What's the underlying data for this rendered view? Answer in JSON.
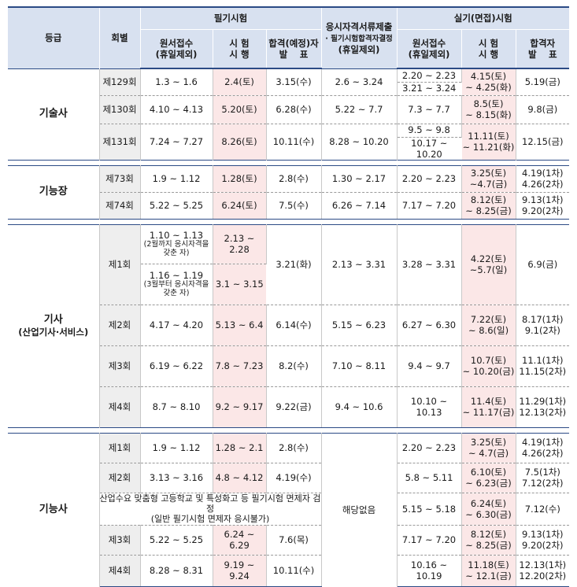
{
  "header": {
    "grade": "등급",
    "round": "회별",
    "written": "필기시험",
    "written_apply": "원서접수\n(휴일제외)",
    "written_exam": "시 험\n시 행",
    "written_result": "합격(예정)자\n발　 표",
    "docs": "응시자격서류제출",
    "docs_sub": "· 필기시험합격자결정",
    "docs_sub2": "(휴일제외)",
    "practical": "실기(면접)시험",
    "prac_apply": "원서접수\n(휴일제외)",
    "prac_exam": "시 험\n시 행",
    "prac_result": "합격자\n발　 표"
  },
  "gisulsa": {
    "grade": "기술사",
    "rows": [
      {
        "round": "제129회",
        "wa": "1.3 ~ 1.6",
        "we": "2.4(토)",
        "wr": "3.15(수)",
        "doc": "2.6 ~ 3.24",
        "pa1": "2.20 ~ 2.23",
        "pa2": "3.21 ~ 3.24",
        "pe": "4.15(토)\n~ 4.25(화)",
        "pr": "5.19(금)"
      },
      {
        "round": "제130회",
        "wa": "4.10 ~ 4.13",
        "we": "5.20(토)",
        "wr": "6.28(수)",
        "doc": "5.22 ~ 7.7",
        "pa": "7.3 ~ 7.7",
        "pe": "8.5(토)\n~ 8.15(화)",
        "pr": "9.8(금)"
      },
      {
        "round": "제131회",
        "wa": "7.24 ~ 7.27",
        "we": "8.26(토)",
        "wr": "10.11(수)",
        "doc": "8.28 ~ 10.20",
        "pa1": "9.5 ~ 9.8",
        "pa2": "10.17 ~ 10.20",
        "pe": "11.11(토)\n~ 11.21(화)",
        "pr": "12.15(금)"
      }
    ]
  },
  "ginungjang": {
    "grade": "기능장",
    "rows": [
      {
        "round": "제73회",
        "wa": "1.9 ~ 1.12",
        "we": "1.28(토)",
        "wr": "2.8(수)",
        "doc": "1.30 ~ 2.17",
        "pa": "2.20 ~ 2.23",
        "pe": "3.25(토)\n~4.7(금)",
        "pr": "4.19(1차)\n4.26(2차)"
      },
      {
        "round": "제74회",
        "wa": "5.22 ~ 5.25",
        "we": "6.24(토)",
        "wr": "7.5(수)",
        "doc": "6.26 ~ 7.14",
        "pa": "7.17 ~ 7.20",
        "pe": "8.12(토)\n~ 8.25(금)",
        "pr": "9.13(1차)\n9.20(2차)"
      }
    ]
  },
  "gisa": {
    "grade": "기사",
    "grade_sub": "(산업기사·서비스)",
    "r1": {
      "round": "제1회",
      "wa1": "1.10 ~ 1.13",
      "wa1_note": "(2월까지 응시자격을\n갖춘 자)",
      "we1": "2.13 ~ 2.28",
      "wa2": "1.16 ~ 1.19",
      "wa2_note": "(3월부터 응시자격을\n갖춘 자)",
      "we2": "3.1 ~ 3.15",
      "wr": "3.21(화)",
      "doc": "2.13 ~ 3.31",
      "pa": "3.28 ~ 3.31",
      "pe": "4.22(토)\n~5.7(일)",
      "pr": "6.9(금)"
    },
    "rows": [
      {
        "round": "제2회",
        "wa": "4.17 ~ 4.20",
        "we": "5.13 ~ 6.4",
        "wr": "6.14(수)",
        "doc": "5.15 ~ 6.23",
        "pa": "6.27 ~ 6.30",
        "pe": "7.22(토)\n~ 8.6(일)",
        "pr": "8.17(1차)\n9.1(2차)"
      },
      {
        "round": "제3회",
        "wa": "6.19 ~ 6.22",
        "we": "7.8 ~ 7.23",
        "wr": "8.2(수)",
        "doc": "7.10 ~ 8.11",
        "pa": "9.4 ~ 9.7",
        "pe": "10.7(토)\n~ 10.20(금)",
        "pr": "11.1(1차)\n11.15(2차)"
      },
      {
        "round": "제4회",
        "wa": "8.7 ~ 8.10",
        "we": "9.2 ~ 9.17",
        "wr": "9.22(금)",
        "doc": "9.4 ~ 10.6",
        "pa": "10.10 ~ 10.13",
        "pe": "11.4(토)\n~ 11.17(금)",
        "pr": "11.29(1차)\n12.13(2차)"
      }
    ]
  },
  "ginungsa": {
    "grade": "기능사",
    "doc_merged": "해당없음",
    "r1": {
      "round": "제1회",
      "wa": "1.9 ~ 1.12",
      "we": "1.28 ~ 2.1",
      "wr": "2.8(수)",
      "pa": "2.20 ~ 2.23",
      "pe": "3.25(토)\n~ 4.7(금)",
      "pr": "4.19(1차)\n4.26(2차)"
    },
    "r2": {
      "round": "제2회",
      "wa": "3.13 ~ 3.16",
      "we": "4.8 ~ 4.12",
      "wr": "4.19(수)",
      "pa": "5.8 ~ 5.11",
      "pe": "6.10(토)\n~ 6.23(금)",
      "pr": "7.5(1차)\n7.12(2차)"
    },
    "special": {
      "notice": "산업수요 맞춤형 고등학교 및 특성화고 등 필기시험 면제자 검정\n(일반 필기시험 면제자 응시불가)",
      "pa": "5.15 ~ 5.18",
      "pe": "6.24(토)\n~ 6.30(금)",
      "pr": "7.12(수)"
    },
    "r3": {
      "round": "제3회",
      "wa": "5.22 ~ 5.25",
      "we": "6.24 ~ 6.29",
      "wr": "7.6(목)",
      "pa": "7.17 ~ 7.20",
      "pe": "8.12(토)\n~ 8.25(금)",
      "pr": "9.13(1차)\n9.20(2차)"
    },
    "r4": {
      "round": "제4회",
      "wa": "8.28 ~ 8.31",
      "we": "9.19 ~ 9.24",
      "wr": "10.11(수)",
      "pa": "10.16 ~ 10.19",
      "pe": "11.18(토)\n~ 12.1(금)",
      "pr": "12.13(1차)\n12.20(2차)"
    }
  }
}
